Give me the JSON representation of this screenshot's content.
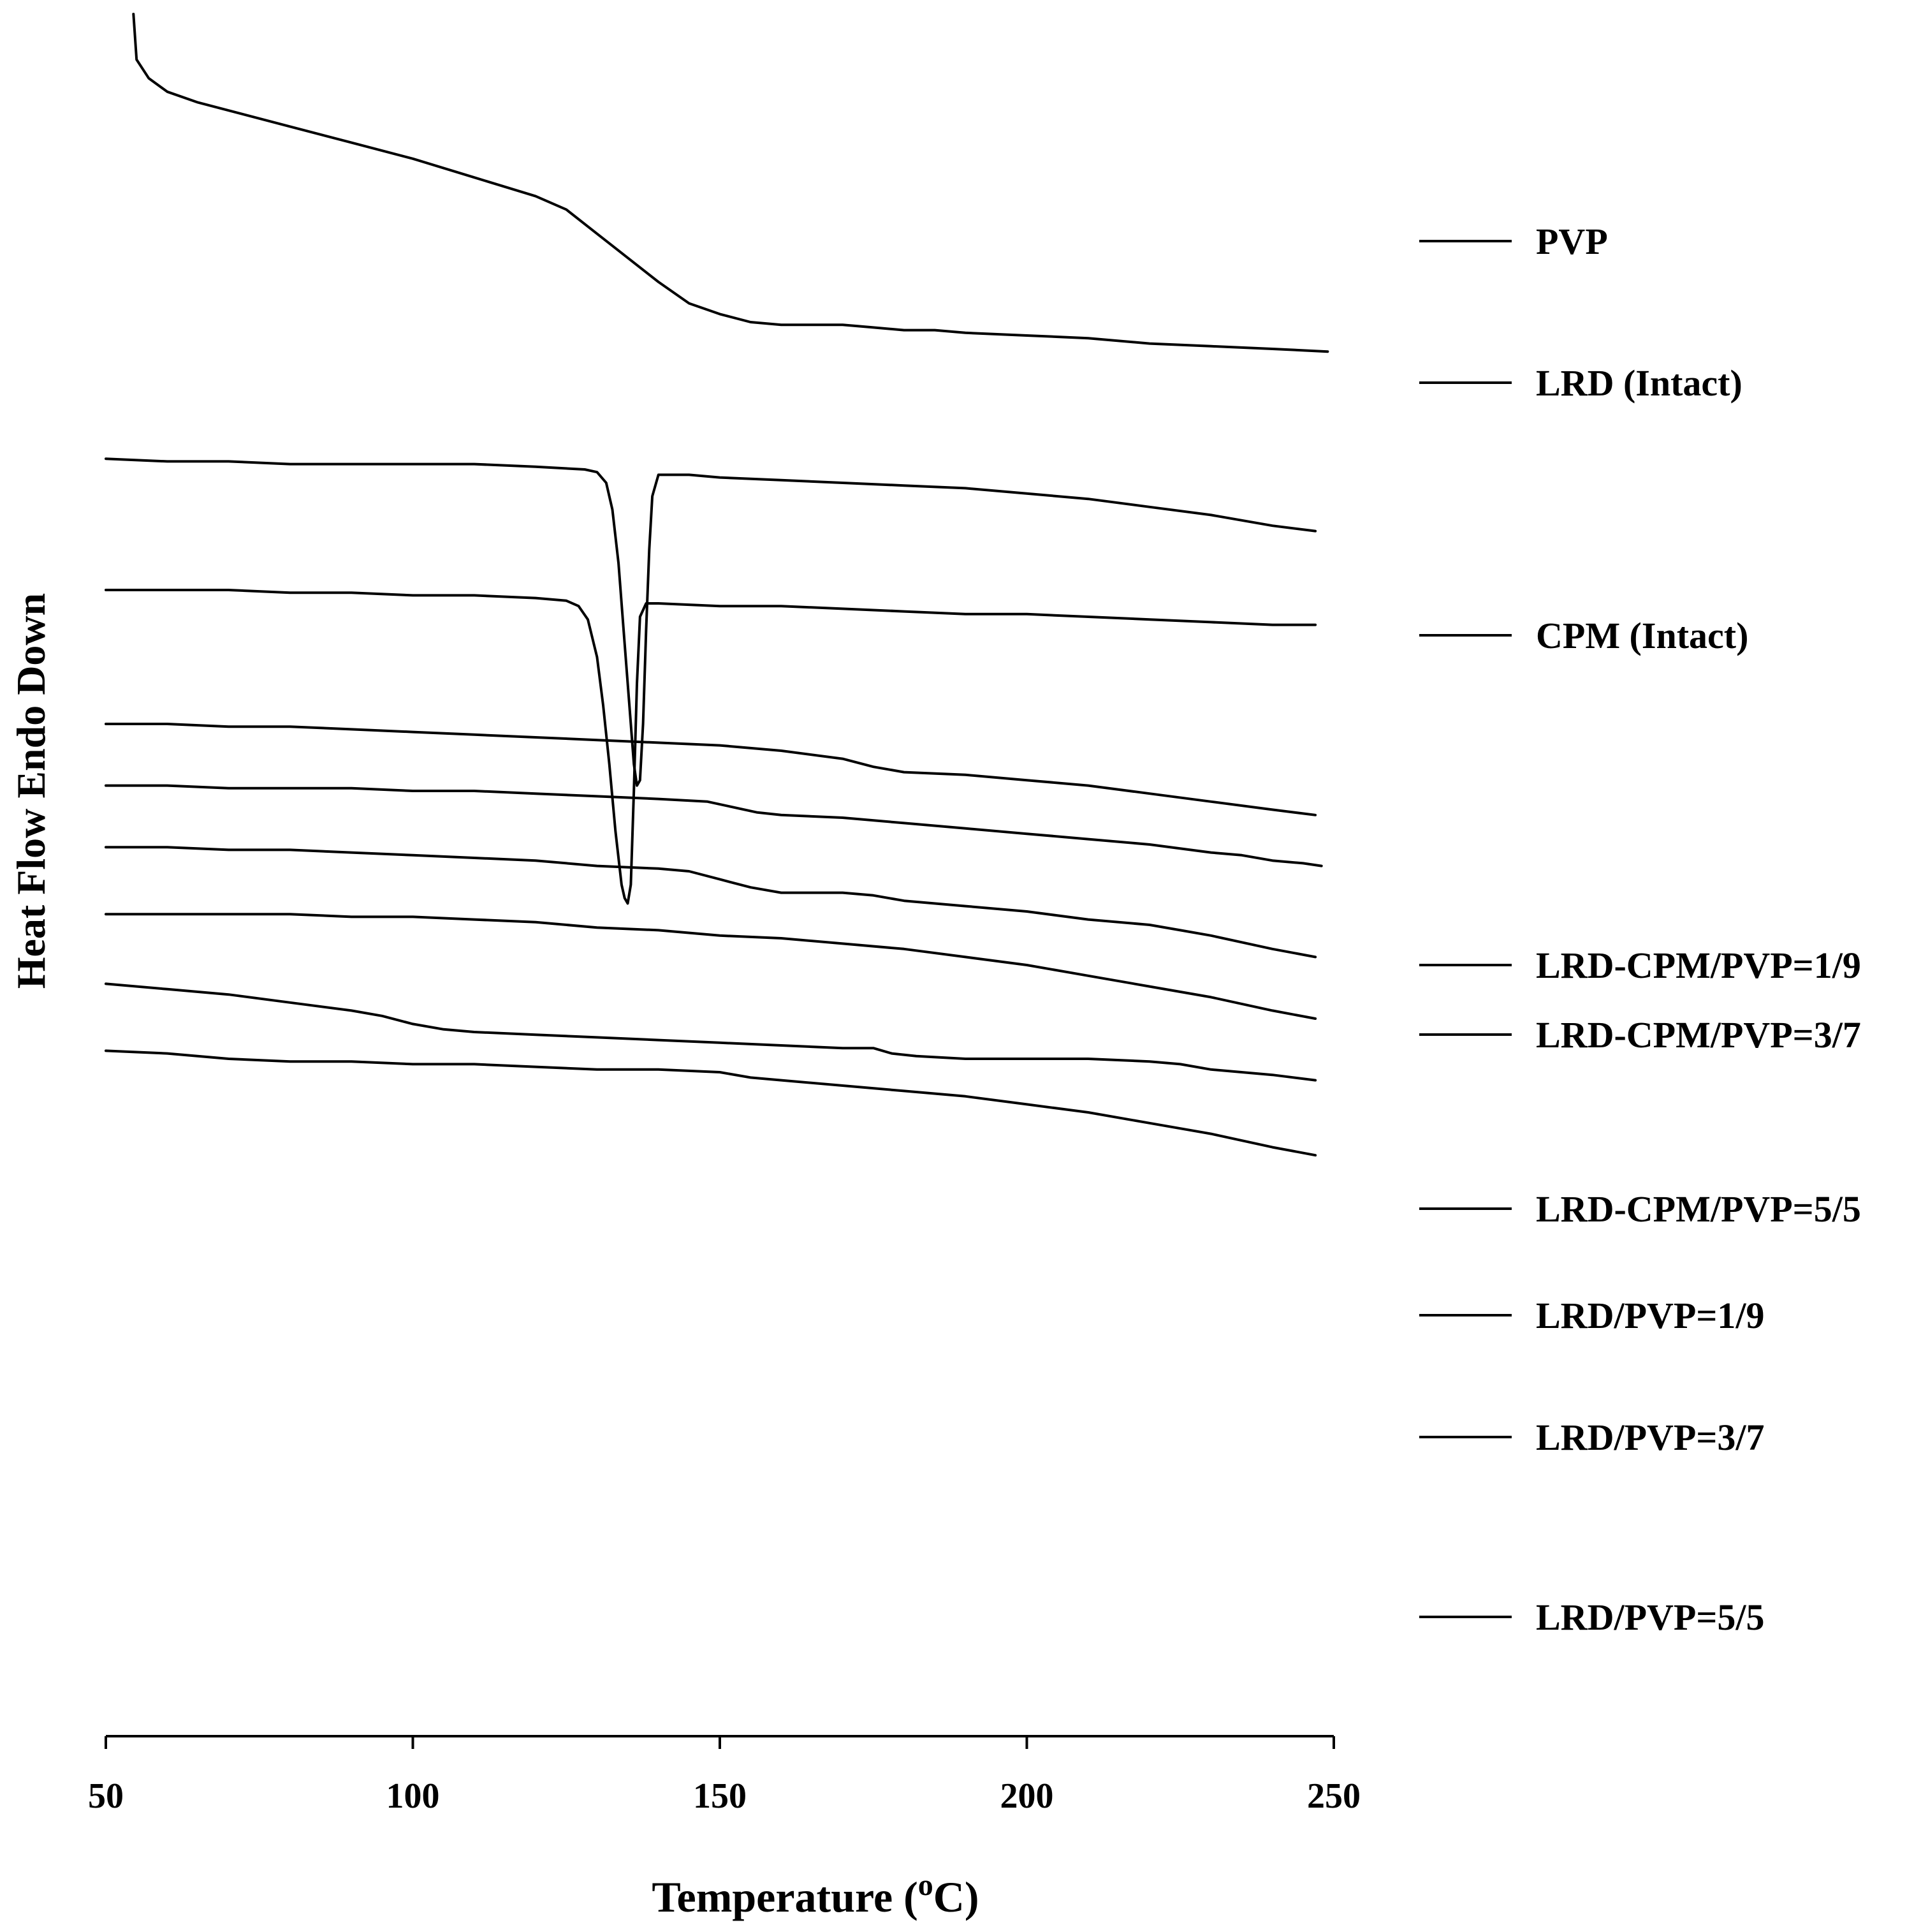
{
  "chart_data": {
    "type": "line",
    "title": "",
    "xlabel": "Temperature (",
    "xlabel_sup": "o",
    "xlabel_end": "C)",
    "ylabel": "Heat Flow Endo Down",
    "xlim": [
      50,
      250
    ],
    "xticks": [
      50,
      100,
      150,
      200,
      250
    ],
    "grid": false,
    "legend_placement": "right",
    "line_color": "#000000",
    "series": [
      {
        "name": "PVP",
        "points": [
          [
            54.5,
            10.1
          ],
          [
            55,
            9.93
          ],
          [
            57,
            9.86
          ],
          [
            60,
            9.81
          ],
          [
            65,
            9.77
          ],
          [
            70,
            9.74
          ],
          [
            80,
            9.68
          ],
          [
            90,
            9.62
          ],
          [
            100,
            9.56
          ],
          [
            110,
            9.49
          ],
          [
            120,
            9.42
          ],
          [
            125,
            9.37
          ],
          [
            130,
            9.28
          ],
          [
            135,
            9.19
          ],
          [
            140,
            9.1
          ],
          [
            145,
            9.02
          ],
          [
            150,
            8.98
          ],
          [
            155,
            8.95
          ],
          [
            160,
            8.94
          ],
          [
            165,
            8.94
          ],
          [
            170,
            8.94
          ],
          [
            175,
            8.93
          ],
          [
            180,
            8.92
          ],
          [
            185,
            8.92
          ],
          [
            190,
            8.91
          ],
          [
            200,
            8.9
          ],
          [
            210,
            8.89
          ],
          [
            220,
            8.87
          ],
          [
            230,
            8.86
          ],
          [
            240,
            8.85
          ],
          [
            249,
            8.84
          ]
        ]
      },
      {
        "name": "LRD (Intact)",
        "points": [
          [
            50,
            8.44
          ],
          [
            60,
            8.43
          ],
          [
            70,
            8.43
          ],
          [
            80,
            8.42
          ],
          [
            90,
            8.42
          ],
          [
            100,
            8.42
          ],
          [
            110,
            8.42
          ],
          [
            120,
            8.41
          ],
          [
            128,
            8.4
          ],
          [
            130,
            8.39
          ],
          [
            131.5,
            8.35
          ],
          [
            132.5,
            8.25
          ],
          [
            133.5,
            8.05
          ],
          [
            134.5,
            7.75
          ],
          [
            135.5,
            7.45
          ],
          [
            136,
            7.3
          ],
          [
            136.5,
            7.22
          ],
          [
            137,
            7.24
          ],
          [
            137.5,
            7.45
          ],
          [
            138,
            7.8
          ],
          [
            138.5,
            8.1
          ],
          [
            139,
            8.3
          ],
          [
            140,
            8.38
          ],
          [
            145,
            8.38
          ],
          [
            150,
            8.37
          ],
          [
            160,
            8.36
          ],
          [
            170,
            8.35
          ],
          [
            180,
            8.34
          ],
          [
            190,
            8.33
          ],
          [
            200,
            8.31
          ],
          [
            210,
            8.29
          ],
          [
            220,
            8.26
          ],
          [
            230,
            8.23
          ],
          [
            240,
            8.19
          ],
          [
            247,
            8.17
          ]
        ]
      },
      {
        "name": "CPM (Intact)",
        "points": [
          [
            50,
            7.95
          ],
          [
            60,
            7.95
          ],
          [
            70,
            7.95
          ],
          [
            80,
            7.94
          ],
          [
            90,
            7.94
          ],
          [
            100,
            7.93
          ],
          [
            110,
            7.93
          ],
          [
            120,
            7.92
          ],
          [
            125,
            7.91
          ],
          [
            127,
            7.89
          ],
          [
            128.5,
            7.84
          ],
          [
            130,
            7.7
          ],
          [
            131,
            7.52
          ],
          [
            132,
            7.3
          ],
          [
            133,
            7.05
          ],
          [
            134,
            6.85
          ],
          [
            134.5,
            6.8
          ],
          [
            135,
            6.78
          ],
          [
            135.5,
            6.85
          ],
          [
            136,
            7.2
          ],
          [
            136.5,
            7.6
          ],
          [
            137,
            7.85
          ],
          [
            138,
            7.9
          ],
          [
            140,
            7.9
          ],
          [
            150,
            7.89
          ],
          [
            160,
            7.89
          ],
          [
            170,
            7.88
          ],
          [
            180,
            7.87
          ],
          [
            190,
            7.86
          ],
          [
            200,
            7.86
          ],
          [
            210,
            7.85
          ],
          [
            220,
            7.84
          ],
          [
            230,
            7.83
          ],
          [
            240,
            7.82
          ],
          [
            247,
            7.82
          ]
        ]
      },
      {
        "name": "LRD-CPM/PVP=1/9",
        "points": [
          [
            50,
            7.45
          ],
          [
            60,
            7.45
          ],
          [
            70,
            7.44
          ],
          [
            80,
            7.44
          ],
          [
            90,
            7.43
          ],
          [
            100,
            7.42
          ],
          [
            110,
            7.41
          ],
          [
            120,
            7.4
          ],
          [
            130,
            7.39
          ],
          [
            140,
            7.38
          ],
          [
            150,
            7.37
          ],
          [
            160,
            7.35
          ],
          [
            170,
            7.32
          ],
          [
            175,
            7.29
          ],
          [
            180,
            7.27
          ],
          [
            190,
            7.26
          ],
          [
            200,
            7.24
          ],
          [
            210,
            7.22
          ],
          [
            220,
            7.19
          ],
          [
            230,
            7.16
          ],
          [
            240,
            7.13
          ],
          [
            247,
            7.11
          ]
        ]
      },
      {
        "name": "LRD-CPM/PVP=3/7",
        "points": [
          [
            50,
            7.22
          ],
          [
            60,
            7.22
          ],
          [
            70,
            7.21
          ],
          [
            80,
            7.21
          ],
          [
            90,
            7.21
          ],
          [
            100,
            7.2
          ],
          [
            110,
            7.2
          ],
          [
            120,
            7.19
          ],
          [
            130,
            7.18
          ],
          [
            140,
            7.17
          ],
          [
            148,
            7.16
          ],
          [
            152,
            7.14
          ],
          [
            156,
            7.12
          ],
          [
            160,
            7.11
          ],
          [
            170,
            7.1
          ],
          [
            180,
            7.08
          ],
          [
            190,
            7.06
          ],
          [
            200,
            7.04
          ],
          [
            210,
            7.02
          ],
          [
            220,
            7.0
          ],
          [
            230,
            6.97
          ],
          [
            235,
            6.96
          ],
          [
            240,
            6.94
          ],
          [
            245,
            6.93
          ],
          [
            248,
            6.92
          ]
        ]
      },
      {
        "name": "LRD-CPM/PVP=5/5",
        "points": [
          [
            50,
            6.99
          ],
          [
            60,
            6.99
          ],
          [
            70,
            6.98
          ],
          [
            80,
            6.98
          ],
          [
            90,
            6.97
          ],
          [
            100,
            6.96
          ],
          [
            110,
            6.95
          ],
          [
            120,
            6.94
          ],
          [
            130,
            6.92
          ],
          [
            140,
            6.91
          ],
          [
            145,
            6.9
          ],
          [
            150,
            6.87
          ],
          [
            155,
            6.84
          ],
          [
            160,
            6.82
          ],
          [
            165,
            6.82
          ],
          [
            170,
            6.82
          ],
          [
            175,
            6.81
          ],
          [
            180,
            6.79
          ],
          [
            190,
            6.77
          ],
          [
            200,
            6.75
          ],
          [
            210,
            6.72
          ],
          [
            220,
            6.7
          ],
          [
            225,
            6.68
          ],
          [
            230,
            6.66
          ],
          [
            240,
            6.61
          ],
          [
            247,
            6.58
          ]
        ]
      },
      {
        "name": "LRD/PVP=1/9",
        "points": [
          [
            50,
            6.74
          ],
          [
            60,
            6.74
          ],
          [
            70,
            6.74
          ],
          [
            80,
            6.74
          ],
          [
            90,
            6.73
          ],
          [
            100,
            6.73
          ],
          [
            110,
            6.72
          ],
          [
            120,
            6.71
          ],
          [
            130,
            6.69
          ],
          [
            140,
            6.68
          ],
          [
            150,
            6.66
          ],
          [
            160,
            6.65
          ],
          [
            170,
            6.63
          ],
          [
            180,
            6.61
          ],
          [
            190,
            6.58
          ],
          [
            200,
            6.55
          ],
          [
            210,
            6.51
          ],
          [
            220,
            6.47
          ],
          [
            230,
            6.43
          ],
          [
            240,
            6.38
          ],
          [
            247,
            6.35
          ]
        ]
      },
      {
        "name": "LRD/PVP=3/7",
        "points": [
          [
            50,
            6.48
          ],
          [
            60,
            6.46
          ],
          [
            70,
            6.44
          ],
          [
            80,
            6.41
          ],
          [
            90,
            6.38
          ],
          [
            95,
            6.36
          ],
          [
            100,
            6.33
          ],
          [
            105,
            6.31
          ],
          [
            110,
            6.3
          ],
          [
            120,
            6.29
          ],
          [
            130,
            6.28
          ],
          [
            140,
            6.27
          ],
          [
            150,
            6.26
          ],
          [
            160,
            6.25
          ],
          [
            170,
            6.24
          ],
          [
            175,
            6.24
          ],
          [
            178,
            6.22
          ],
          [
            182,
            6.21
          ],
          [
            190,
            6.2
          ],
          [
            200,
            6.2
          ],
          [
            210,
            6.2
          ],
          [
            220,
            6.19
          ],
          [
            225,
            6.18
          ],
          [
            230,
            6.16
          ],
          [
            240,
            6.14
          ],
          [
            247,
            6.12
          ]
        ]
      },
      {
        "name": "LRD/PVP=5/5",
        "points": [
          [
            50,
            6.23
          ],
          [
            60,
            6.22
          ],
          [
            70,
            6.2
          ],
          [
            80,
            6.19
          ],
          [
            90,
            6.19
          ],
          [
            100,
            6.18
          ],
          [
            110,
            6.18
          ],
          [
            120,
            6.17
          ],
          [
            130,
            6.16
          ],
          [
            140,
            6.16
          ],
          [
            150,
            6.15
          ],
          [
            155,
            6.13
          ],
          [
            160,
            6.12
          ],
          [
            170,
            6.1
          ],
          [
            180,
            6.08
          ],
          [
            190,
            6.06
          ],
          [
            200,
            6.03
          ],
          [
            210,
            6.0
          ],
          [
            220,
            5.96
          ],
          [
            230,
            5.92
          ],
          [
            240,
            5.87
          ],
          [
            247,
            5.84
          ]
        ]
      }
    ]
  }
}
